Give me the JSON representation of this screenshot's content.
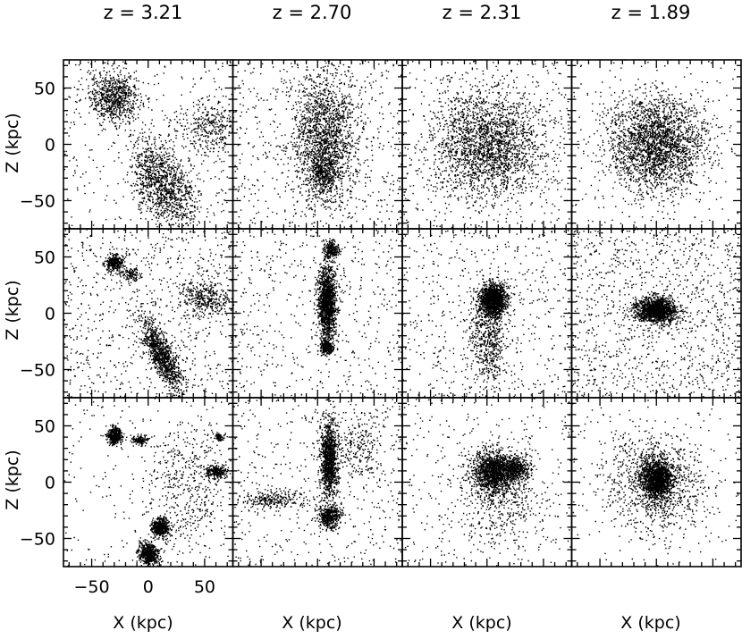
{
  "chart_data": {
    "type": "scatter",
    "layout": {
      "rows": 3,
      "cols": 4
    },
    "column_titles": [
      "z = 3.21",
      "z = 2.70",
      "z = 2.31",
      "z = 1.89"
    ],
    "ylabel": "Z (kpc)",
    "xlabel": "X (kpc)",
    "xlim": [
      -75,
      75
    ],
    "ylim": [
      -75,
      75
    ],
    "xticks": [
      -50,
      0,
      50
    ],
    "yticks": [
      50,
      0,
      -50
    ],
    "xtick_labels": [
      "−50",
      "0",
      "50"
    ],
    "ytick_labels": [
      "50",
      "0",
      "−50"
    ],
    "marker_color": "#000000",
    "panels": [
      {
        "row": 0,
        "col": 0,
        "background": 0.12,
        "clumps": [
          {
            "x": -30,
            "y": 42,
            "sx": 11,
            "sy": 11,
            "w": 0.22
          },
          {
            "x": 13,
            "y": -35,
            "sx": 12,
            "sy": 22,
            "rot": 0.5,
            "w": 0.35
          },
          {
            "x": 55,
            "y": 15,
            "sx": 14,
            "sy": 12,
            "w": 0.1
          }
        ]
      },
      {
        "row": 0,
        "col": 1,
        "background": 0.22,
        "clumps": [
          {
            "x": 5,
            "y": 5,
            "sx": 14,
            "sy": 30,
            "w": 0.5
          },
          {
            "x": 5,
            "y": -25,
            "sx": 6,
            "sy": 8,
            "w": 0.08
          }
        ]
      },
      {
        "row": 0,
        "col": 2,
        "background": 0.15,
        "clumps": [
          {
            "x": 0,
            "y": 0,
            "sx": 24,
            "sy": 24,
            "w": 0.85
          }
        ]
      },
      {
        "row": 0,
        "col": 3,
        "background": 0.05,
        "clumps": [
          {
            "x": 0,
            "y": 0,
            "sx": 22,
            "sy": 22,
            "w": 0.95
          }
        ]
      },
      {
        "row": 1,
        "col": 0,
        "background": 0.3,
        "clumps": [
          {
            "x": -30,
            "y": 45,
            "sx": 4,
            "sy": 4,
            "w": 0.12
          },
          {
            "x": -15,
            "y": 35,
            "sx": 4,
            "sy": 3,
            "w": 0.04
          },
          {
            "x": 12,
            "y": -38,
            "sx": 5,
            "sy": 18,
            "rot": 0.45,
            "w": 0.4
          },
          {
            "x": 50,
            "y": 15,
            "sx": 12,
            "sy": 8,
            "w": 0.14
          }
        ]
      },
      {
        "row": 1,
        "col": 1,
        "background": 0.2,
        "clumps": [
          {
            "x": 8,
            "y": 10,
            "sx": 4,
            "sy": 16,
            "w": 0.55
          },
          {
            "x": 8,
            "y": -30,
            "sx": 3,
            "sy": 3,
            "w": 0.1
          },
          {
            "x": 12,
            "y": 57,
            "sx": 3,
            "sy": 4,
            "w": 0.08
          }
        ]
      },
      {
        "row": 1,
        "col": 2,
        "background": 0.22,
        "clumps": [
          {
            "x": 5,
            "y": 12,
            "sx": 6,
            "sy": 7,
            "w": 0.55
          },
          {
            "x": 0,
            "y": -20,
            "sx": 8,
            "sy": 22,
            "w": 0.22
          }
        ]
      },
      {
        "row": 1,
        "col": 3,
        "background": 0.45,
        "clumps": [
          {
            "x": 0,
            "y": 3,
            "sx": 9,
            "sy": 6,
            "w": 0.55
          }
        ]
      },
      {
        "row": 2,
        "col": 0,
        "background": 0.06,
        "clumps": [
          {
            "x": -30,
            "y": 42,
            "sx": 3,
            "sy": 4,
            "w": 0.16
          },
          {
            "x": 10,
            "y": -40,
            "sx": 4,
            "sy": 4,
            "w": 0.2
          },
          {
            "x": 0,
            "y": -63,
            "sx": 4,
            "sy": 5,
            "rot": 0.6,
            "w": 0.2
          },
          {
            "x": 60,
            "y": 10,
            "sx": 5,
            "sy": 3,
            "w": 0.1
          },
          {
            "x": 62,
            "y": 40,
            "sx": 2,
            "sy": 2,
            "w": 0.03
          },
          {
            "x": -8,
            "y": 38,
            "sx": 4,
            "sy": 2,
            "w": 0.05
          },
          {
            "x": 35,
            "y": -5,
            "sx": 20,
            "sy": 30,
            "w": 0.2
          }
        ]
      },
      {
        "row": 2,
        "col": 1,
        "background": 0.18,
        "clumps": [
          {
            "x": 10,
            "y": 20,
            "sx": 4,
            "sy": 18,
            "w": 0.45
          },
          {
            "x": 10,
            "y": -30,
            "sx": 5,
            "sy": 5,
            "w": 0.18
          },
          {
            "x": -40,
            "y": -15,
            "sx": 15,
            "sy": 4,
            "w": 0.1
          },
          {
            "x": 35,
            "y": 30,
            "sx": 12,
            "sy": 15,
            "w": 0.09
          }
        ]
      },
      {
        "row": 2,
        "col": 2,
        "background": 0.12,
        "clumps": [
          {
            "x": 5,
            "y": 10,
            "sx": 10,
            "sy": 9,
            "w": 0.55
          },
          {
            "x": 25,
            "y": 12,
            "sx": 6,
            "sy": 5,
            "w": 0.15
          },
          {
            "x": 10,
            "y": -15,
            "sx": 20,
            "sy": 22,
            "w": 0.18
          }
        ]
      },
      {
        "row": 2,
        "col": 3,
        "background": 0.06,
        "clumps": [
          {
            "x": 0,
            "y": 3,
            "sx": 7,
            "sy": 9,
            "w": 0.55
          },
          {
            "x": 0,
            "y": 0,
            "sx": 22,
            "sy": 22,
            "w": 0.39
          }
        ]
      }
    ]
  }
}
